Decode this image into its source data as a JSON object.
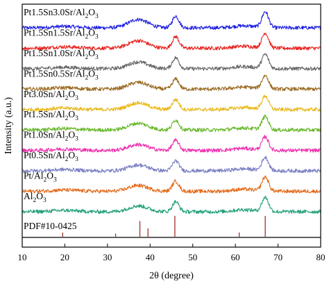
{
  "chart_data": {
    "type": "line",
    "xlabel": "2θ (degree)",
    "ylabel": "Intensity (a.u.)",
    "xlim": [
      10,
      80
    ],
    "xticks": [
      10,
      20,
      30,
      40,
      50,
      60,
      70,
      80
    ],
    "grid": false,
    "legend": "inline labels above each trace",
    "peaks_deg": [
      37.2,
      46.0,
      67.0
    ],
    "reference": {
      "name": "PDF#10-0425",
      "color": "#a0302a",
      "lines": [
        {
          "x": 19.5,
          "rel": 0.2
        },
        {
          "x": 31.9,
          "rel": 0.15
        },
        {
          "x": 37.6,
          "rel": 0.75
        },
        {
          "x": 39.5,
          "rel": 0.4
        },
        {
          "x": 45.8,
          "rel": 1.0
        },
        {
          "x": 60.9,
          "rel": 0.2
        },
        {
          "x": 67.0,
          "rel": 1.0
        }
      ]
    },
    "series": [
      {
        "name": "Pt1.5Sn3.0Sr/Al2O3",
        "sub": [
          "Pt1.5Sn3.0Sr/Al",
          "2",
          "O",
          "3"
        ],
        "color": "#1f1fe0",
        "peaks": [
          0.5,
          0.7,
          0.95
        ]
      },
      {
        "name": "Pt1.5Sn1.5Sr/Al2O3",
        "sub": [
          "Pt1.5Sn1.5Sr/Al",
          "2",
          "O",
          "3"
        ],
        "color": "#e8221e",
        "peaks": [
          0.45,
          0.7,
          0.9
        ]
      },
      {
        "name": "Pt1.5Sn1.0Sr/Al2O3",
        "sub": [
          "Pt1.5Sn1.0Sr/Al",
          "2",
          "O",
          "3"
        ],
        "color": "#666666",
        "peaks": [
          0.4,
          0.65,
          0.85
        ]
      },
      {
        "name": "Pt1.5Sn0.5Sr/Al2O3",
        "sub": [
          "Pt1.5Sn0.5Sr/Al",
          "2",
          "O",
          "3"
        ],
        "color": "#9a6b22",
        "peaks": [
          0.4,
          0.6,
          0.8
        ]
      },
      {
        "name": "Pt3.0Sn/Al2O3",
        "sub": [
          "Pt3.0Sn/Al",
          "2",
          "O",
          "3"
        ],
        "color": "#e8b81c",
        "peaks": [
          0.4,
          0.6,
          0.8
        ]
      },
      {
        "name": "Pt1.5Sn/Al2O3",
        "sub": [
          "Pt1.5Sn/Al",
          "2",
          "O",
          "3"
        ],
        "color": "#68b82a",
        "peaks": [
          0.4,
          0.6,
          0.8
        ]
      },
      {
        "name": "Pt1.0Sn/Al2O3",
        "sub": [
          "Pt1.0Sn/Al",
          "2",
          "O",
          "3"
        ],
        "color": "#ee2fae",
        "peaks": [
          0.35,
          0.6,
          0.8
        ]
      },
      {
        "name": "Pt0.5Sn/Al2O3",
        "sub": [
          "Pt0.5Sn/Al",
          "2",
          "O",
          "3"
        ],
        "color": "#7a7fc4",
        "peaks": [
          0.35,
          0.6,
          0.8
        ]
      },
      {
        "name": "Pt/Al2O3",
        "sub": [
          "Pt/Al",
          "2",
          "O",
          "3"
        ],
        "color": "#e36a1a",
        "peaks": [
          0.35,
          0.6,
          0.85
        ]
      },
      {
        "name": "Al2O3",
        "sub": [
          "Al",
          "2",
          "O",
          "3"
        ],
        "color": "#22a07a",
        "peaks": [
          0.35,
          0.6,
          0.85
        ]
      }
    ]
  }
}
